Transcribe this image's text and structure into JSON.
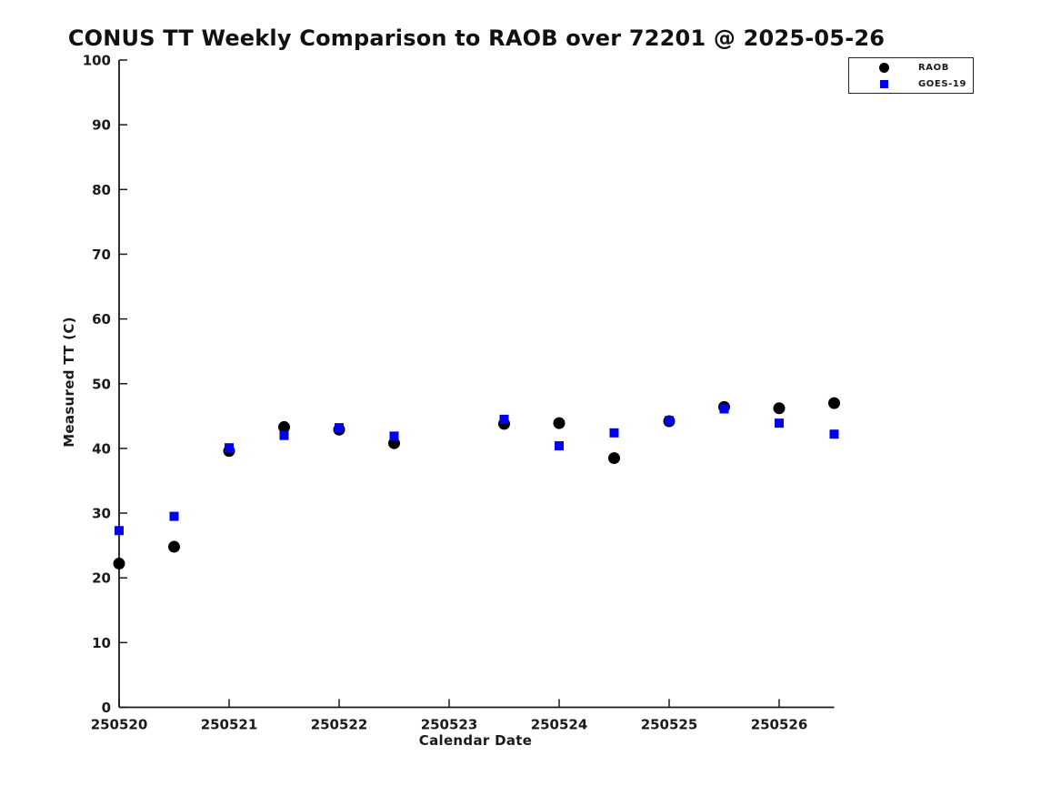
{
  "page_title": "CONUS TT Weekly Comparison to RAOB over 72201 @ 2025-05-26",
  "chart_data": {
    "type": "scatter",
    "title": "CONUS TT Weekly Comparison to RAOB over 72201 @ 2025-05-26",
    "xlabel": "Calendar Date",
    "ylabel": "Measured TT (C)",
    "ylim": [
      0,
      100
    ],
    "y_ticks": [
      0,
      10,
      20,
      30,
      40,
      50,
      60,
      70,
      80,
      90,
      100
    ],
    "x_tick_labels": [
      "250520",
      "250521",
      "250522",
      "250523",
      "250524",
      "250525",
      "250526"
    ],
    "x_tick_positions_days": [
      0,
      1,
      2,
      3,
      4,
      5,
      6
    ],
    "x_range_days": [
      0,
      6.5
    ],
    "grid": false,
    "legend_position": "top-right-above-plot",
    "x_days": [
      0,
      0.5,
      1,
      1.5,
      2,
      2.5,
      3.5,
      4,
      4.5,
      5,
      5.5,
      6,
      6.5
    ],
    "series": [
      {
        "name": "RAOB",
        "marker": "circle",
        "color": "#000000",
        "values": [
          22.2,
          24.8,
          39.6,
          43.3,
          42.9,
          40.8,
          43.8,
          43.9,
          38.5,
          44.2,
          46.4,
          46.2,
          47.0
        ]
      },
      {
        "name": "GOES-19",
        "marker": "square",
        "color": "#0000ee",
        "values": [
          27.3,
          29.5,
          40.1,
          42.0,
          43.2,
          41.9,
          44.5,
          40.4,
          42.4,
          44.3,
          46.1,
          43.9,
          42.2
        ]
      }
    ]
  }
}
